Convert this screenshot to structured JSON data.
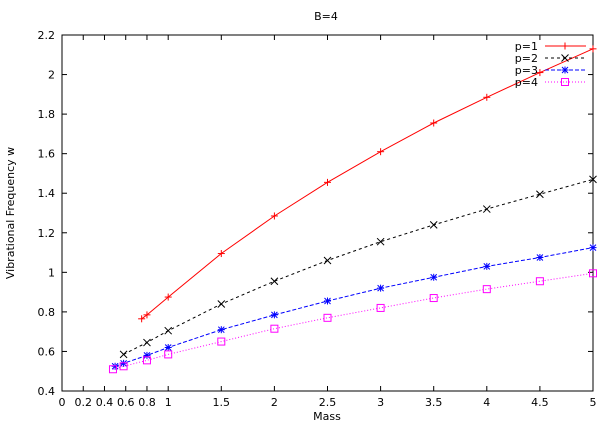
{
  "chart_data": {
    "type": "line",
    "title": "B=4",
    "xlabel": "Mass",
    "ylabel": "Vibrational Frequency w",
    "xlim": [
      0,
      5
    ],
    "ylim": [
      0.4,
      2.2
    ],
    "xticks": [
      0,
      0.2,
      0.4,
      0.6,
      0.8,
      1,
      1.5,
      2,
      2.5,
      3,
      3.5,
      4,
      4.5,
      5
    ],
    "xtick_labels": [
      "0",
      "0.2",
      "0.4",
      "0.6",
      "0.8",
      "1",
      "1.5",
      "2",
      "2.5",
      "3",
      "3.5",
      "4",
      "4.5",
      "5"
    ],
    "yticks": [
      0.4,
      0.6,
      0.8,
      1,
      1.2,
      1.4,
      1.6,
      1.8,
      2,
      2.2
    ],
    "ytick_labels": [
      "0.4",
      "0.6",
      "0.8",
      "1",
      "1.2",
      "1.4",
      "1.6",
      "1.8",
      "2",
      "2.2"
    ],
    "grid": false,
    "legend_position": "top-right",
    "series": [
      {
        "name": "p=1",
        "color": "#ff0000",
        "marker": "plus",
        "dash": "",
        "points": [
          [
            0.75,
            0.765
          ],
          [
            0.8,
            0.785
          ],
          [
            1,
            0.875
          ],
          [
            1.5,
            1.095
          ],
          [
            2,
            1.285
          ],
          [
            2.5,
            1.455
          ],
          [
            3,
            1.61
          ],
          [
            3.5,
            1.755
          ],
          [
            4,
            1.885
          ],
          [
            4.5,
            2.01
          ],
          [
            5,
            2.13
          ]
        ]
      },
      {
        "name": "p=2",
        "color": "#000000",
        "marker": "cross",
        "dash": "3,3",
        "points": [
          [
            0.58,
            0.585
          ],
          [
            0.8,
            0.645
          ],
          [
            1,
            0.705
          ],
          [
            1.5,
            0.84
          ],
          [
            2,
            0.955
          ],
          [
            2.5,
            1.06
          ],
          [
            3,
            1.155
          ],
          [
            3.5,
            1.24
          ],
          [
            4,
            1.32
          ],
          [
            4.5,
            1.395
          ],
          [
            5,
            1.47
          ]
        ]
      },
      {
        "name": "p=3",
        "color": "#0000ff",
        "marker": "star",
        "dash": "4,2",
        "points": [
          [
            0.5,
            0.525
          ],
          [
            0.58,
            0.54
          ],
          [
            0.8,
            0.58
          ],
          [
            1,
            0.62
          ],
          [
            1.5,
            0.71
          ],
          [
            2,
            0.785
          ],
          [
            2.5,
            0.855
          ],
          [
            3,
            0.92
          ],
          [
            3.5,
            0.975
          ],
          [
            4,
            1.03
          ],
          [
            4.5,
            1.075
          ],
          [
            5,
            1.125
          ]
        ]
      },
      {
        "name": "p=4",
        "color": "#ff00ff",
        "marker": "square",
        "dash": "1,2",
        "points": [
          [
            0.48,
            0.51
          ],
          [
            0.58,
            0.525
          ],
          [
            0.8,
            0.555
          ],
          [
            1,
            0.585
          ],
          [
            1.5,
            0.65
          ],
          [
            2,
            0.715
          ],
          [
            2.5,
            0.77
          ],
          [
            3,
            0.82
          ],
          [
            3.5,
            0.87
          ],
          [
            4,
            0.915
          ],
          [
            4.5,
            0.955
          ],
          [
            5,
            0.995
          ]
        ]
      }
    ]
  }
}
